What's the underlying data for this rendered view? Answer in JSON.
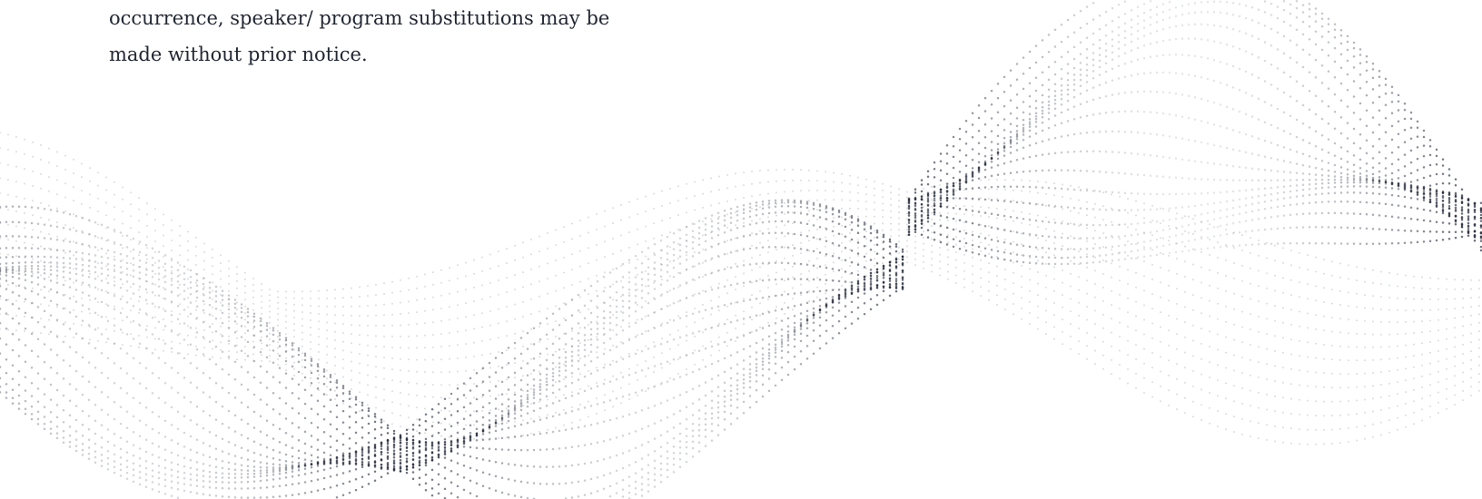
{
  "notice": {
    "lines": [
      "occurrence, speaker/ program substitutions may be",
      "made without prior notice."
    ]
  },
  "decoration": {
    "icon": "dotted-particle-wave-icon",
    "dot_color": "#1f2433"
  }
}
